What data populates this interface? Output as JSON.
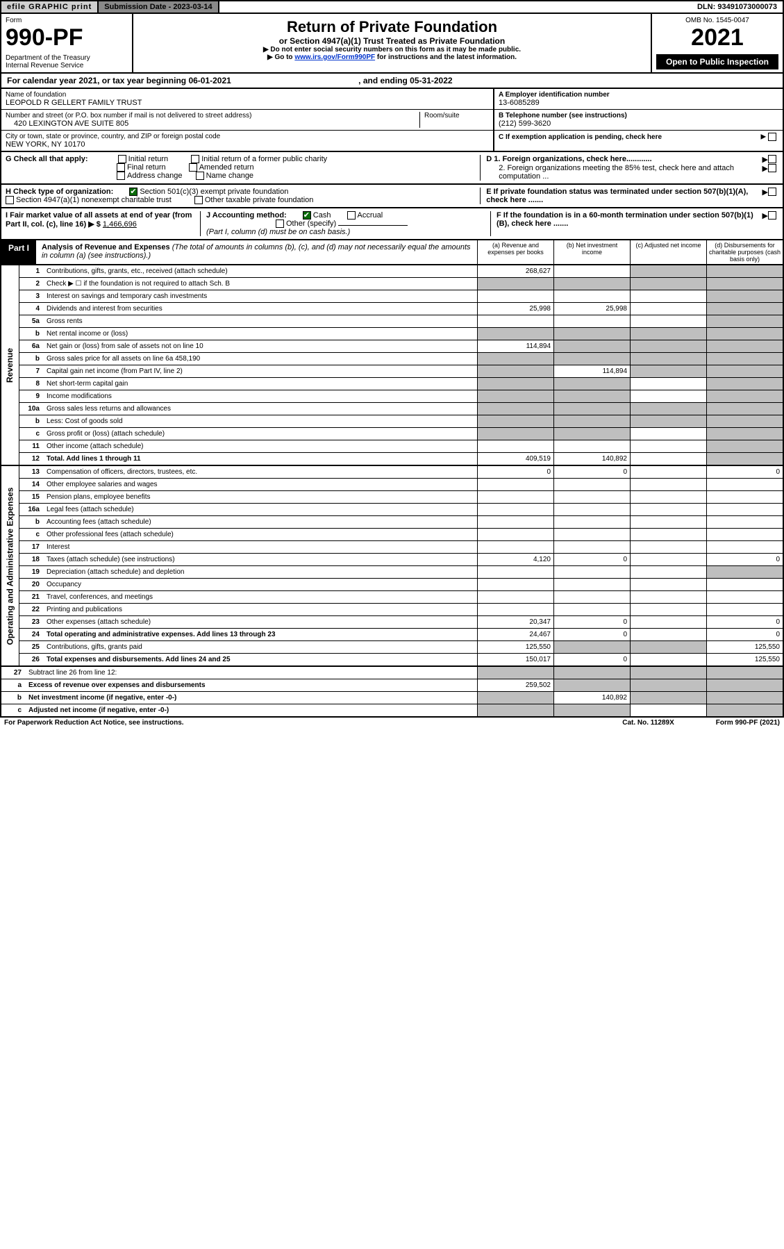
{
  "topbar": {
    "efile": "efile GRAPHIC print",
    "submission": "Submission Date - 2023-03-14",
    "dln": "DLN: 93491073000073"
  },
  "header": {
    "form_label": "Form",
    "form_number": "990-PF",
    "dept": "Department of the Treasury\nInternal Revenue Service",
    "title": "Return of Private Foundation",
    "subtitle": "or Section 4947(a)(1) Trust Treated as Private Foundation",
    "note1": "▶ Do not enter social security numbers on this form as it may be made public.",
    "note2": "▶ Go to ",
    "link": "www.irs.gov/Form990PF",
    "note3": " for instructions and the latest information.",
    "omb": "OMB No. 1545-0047",
    "year": "2021",
    "open": "Open to Public Inspection"
  },
  "calyear": {
    "text": "For calendar year 2021, or tax year beginning 06-01-2021",
    "end": ", and ending 05-31-2022"
  },
  "info": {
    "name_label": "Name of foundation",
    "name": "LEOPOLD R GELLERT FAMILY TRUST",
    "addr_label": "Number and street (or P.O. box number if mail is not delivered to street address)",
    "addr": "420 LEXINGTON AVE SUITE 805",
    "room_label": "Room/suite",
    "city_label": "City or town, state or province, country, and ZIP or foreign postal code",
    "city": "NEW YORK, NY  10170",
    "a_label": "A Employer identification number",
    "a_val": "13-6085289",
    "b_label": "B Telephone number (see instructions)",
    "b_val": "(212) 599-3620",
    "c_label": "C If exemption application is pending, check here",
    "d1_label": "D 1. Foreign organizations, check here............",
    "d2_label": "2. Foreign organizations meeting the 85% test, check here and attach computation ...",
    "e_label": "E If private foundation status was terminated under section 507(b)(1)(A), check here .......",
    "f_label": "F If the foundation is in a 60-month termination under section 507(b)(1)(B), check here ......."
  },
  "checks": {
    "g_label": "G Check all that apply:",
    "g_opts": [
      "Initial return",
      "Initial return of a former public charity",
      "Final return",
      "Amended return",
      "Address change",
      "Name change"
    ],
    "h_label": "H Check type of organization:",
    "h_opt1": "Section 501(c)(3) exempt private foundation",
    "h_opt2": "Section 4947(a)(1) nonexempt charitable trust",
    "h_opt3": "Other taxable private foundation",
    "i_label": "I Fair market value of all assets at end of year (from Part II, col. (c), line 16) ▶ $",
    "i_val": "1,466,696",
    "j_label": "J Accounting method:",
    "j_opts": [
      "Cash",
      "Accrual",
      "Other (specify)"
    ],
    "j_note": "(Part I, column (d) must be on cash basis.)"
  },
  "part1": {
    "label": "Part I",
    "title": "Analysis of Revenue and Expenses",
    "title_note": "(The total of amounts in columns (b), (c), and (d) may not necessarily equal the amounts in column (a) (see instructions).)",
    "col_a": "(a) Revenue and expenses per books",
    "col_b": "(b) Net investment income",
    "col_c": "(c) Adjusted net income",
    "col_d": "(d) Disbursements for charitable purposes (cash basis only)"
  },
  "side_labels": {
    "revenue": "Revenue",
    "expenses": "Operating and Administrative Expenses"
  },
  "rows": [
    {
      "n": "1",
      "label": "Contributions, gifts, grants, etc., received (attach schedule)",
      "a": "268,627",
      "b": "",
      "c": "grey",
      "d": "grey"
    },
    {
      "n": "2",
      "label": "Check ▶ ☐ if the foundation is not required to attach Sch. B",
      "a": "grey",
      "b": "grey",
      "c": "grey",
      "d": "grey",
      "span": true
    },
    {
      "n": "3",
      "label": "Interest on savings and temporary cash investments",
      "a": "",
      "b": "",
      "c": "",
      "d": "grey"
    },
    {
      "n": "4",
      "label": "Dividends and interest from securities",
      "a": "25,998",
      "b": "25,998",
      "c": "",
      "d": "grey"
    },
    {
      "n": "5a",
      "label": "Gross rents",
      "a": "",
      "b": "",
      "c": "",
      "d": "grey"
    },
    {
      "n": "b",
      "label": "Net rental income or (loss)",
      "a": "grey",
      "b": "grey",
      "c": "grey",
      "d": "grey"
    },
    {
      "n": "6a",
      "label": "Net gain or (loss) from sale of assets not on line 10",
      "a": "114,894",
      "b": "grey",
      "c": "grey",
      "d": "grey"
    },
    {
      "n": "b",
      "label": "Gross sales price for all assets on line 6a          458,190",
      "a": "grey",
      "b": "grey",
      "c": "grey",
      "d": "grey"
    },
    {
      "n": "7",
      "label": "Capital gain net income (from Part IV, line 2)",
      "a": "grey",
      "b": "114,894",
      "c": "grey",
      "d": "grey"
    },
    {
      "n": "8",
      "label": "Net short-term capital gain",
      "a": "grey",
      "b": "grey",
      "c": "",
      "d": "grey"
    },
    {
      "n": "9",
      "label": "Income modifications",
      "a": "grey",
      "b": "grey",
      "c": "",
      "d": "grey"
    },
    {
      "n": "10a",
      "label": "Gross sales less returns and allowances",
      "a": "grey",
      "b": "grey",
      "c": "grey",
      "d": "grey"
    },
    {
      "n": "b",
      "label": "Less: Cost of goods sold",
      "a": "grey",
      "b": "grey",
      "c": "grey",
      "d": "grey"
    },
    {
      "n": "c",
      "label": "Gross profit or (loss) (attach schedule)",
      "a": "grey",
      "b": "grey",
      "c": "",
      "d": "grey"
    },
    {
      "n": "11",
      "label": "Other income (attach schedule)",
      "a": "",
      "b": "",
      "c": "",
      "d": "grey"
    },
    {
      "n": "12",
      "label": "Total. Add lines 1 through 11",
      "a": "409,519",
      "b": "140,892",
      "c": "",
      "d": "grey",
      "bold": true
    }
  ],
  "exp_rows": [
    {
      "n": "13",
      "label": "Compensation of officers, directors, trustees, etc.",
      "a": "0",
      "b": "0",
      "c": "",
      "d": "0"
    },
    {
      "n": "14",
      "label": "Other employee salaries and wages",
      "a": "",
      "b": "",
      "c": "",
      "d": ""
    },
    {
      "n": "15",
      "label": "Pension plans, employee benefits",
      "a": "",
      "b": "",
      "c": "",
      "d": ""
    },
    {
      "n": "16a",
      "label": "Legal fees (attach schedule)",
      "a": "",
      "b": "",
      "c": "",
      "d": ""
    },
    {
      "n": "b",
      "label": "Accounting fees (attach schedule)",
      "a": "",
      "b": "",
      "c": "",
      "d": ""
    },
    {
      "n": "c",
      "label": "Other professional fees (attach schedule)",
      "a": "",
      "b": "",
      "c": "",
      "d": ""
    },
    {
      "n": "17",
      "label": "Interest",
      "a": "",
      "b": "",
      "c": "",
      "d": ""
    },
    {
      "n": "18",
      "label": "Taxes (attach schedule) (see instructions)",
      "a": "4,120",
      "b": "0",
      "c": "",
      "d": "0"
    },
    {
      "n": "19",
      "label": "Depreciation (attach schedule) and depletion",
      "a": "",
      "b": "",
      "c": "",
      "d": "grey"
    },
    {
      "n": "20",
      "label": "Occupancy",
      "a": "",
      "b": "",
      "c": "",
      "d": ""
    },
    {
      "n": "21",
      "label": "Travel, conferences, and meetings",
      "a": "",
      "b": "",
      "c": "",
      "d": ""
    },
    {
      "n": "22",
      "label": "Printing and publications",
      "a": "",
      "b": "",
      "c": "",
      "d": ""
    },
    {
      "n": "23",
      "label": "Other expenses (attach schedule)",
      "a": "20,347",
      "b": "0",
      "c": "",
      "d": "0"
    },
    {
      "n": "24",
      "label": "Total operating and administrative expenses. Add lines 13 through 23",
      "a": "24,467",
      "b": "0",
      "c": "",
      "d": "0",
      "bold": true
    },
    {
      "n": "25",
      "label": "Contributions, gifts, grants paid",
      "a": "125,550",
      "b": "grey",
      "c": "grey",
      "d": "125,550"
    },
    {
      "n": "26",
      "label": "Total expenses and disbursements. Add lines 24 and 25",
      "a": "150,017",
      "b": "0",
      "c": "",
      "d": "125,550",
      "bold": true
    }
  ],
  "final_rows": [
    {
      "n": "27",
      "label": "Subtract line 26 from line 12:",
      "a": "grey",
      "b": "grey",
      "c": "grey",
      "d": "grey"
    },
    {
      "n": "a",
      "label": "Excess of revenue over expenses and disbursements",
      "a": "259,502",
      "b": "grey",
      "c": "grey",
      "d": "grey",
      "bold": true
    },
    {
      "n": "b",
      "label": "Net investment income (if negative, enter -0-)",
      "a": "grey",
      "b": "140,892",
      "c": "grey",
      "d": "grey",
      "bold": true
    },
    {
      "n": "c",
      "label": "Adjusted net income (if negative, enter -0-)",
      "a": "grey",
      "b": "grey",
      "c": "",
      "d": "grey",
      "bold": true
    }
  ],
  "footer": {
    "left": "For Paperwork Reduction Act Notice, see instructions.",
    "mid": "Cat. No. 11289X",
    "right": "Form 990-PF (2021)"
  }
}
